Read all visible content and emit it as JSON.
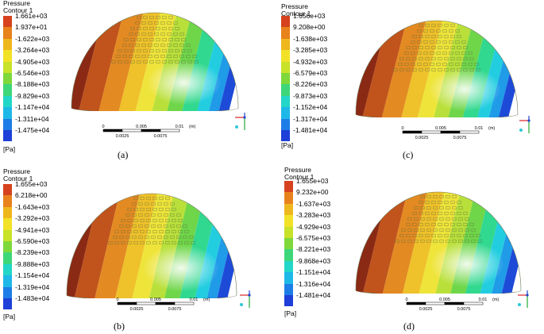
{
  "panels": [
    {
      "id": "a",
      "caption": "(a)",
      "legend": {
        "title": [
          "Pressure",
          "Contour 1"
        ],
        "values": [
          "1.661e+03",
          "1.937e+01",
          "-1.622e+03",
          "-3.264e+03",
          "-4.905e+03",
          "-6.546e+03",
          "-8.188e+03",
          "-9.829e+03",
          "-1.147e+04",
          "-1.311e+04",
          "-1.475e+04"
        ],
        "unit": "[Pa]"
      },
      "scale": {
        "top": [
          "0",
          "0.005",
          "0.01",
          "(m)"
        ],
        "bottom": [
          "0.0025",
          "0.0075"
        ]
      }
    },
    {
      "id": "b",
      "caption": "(b)",
      "legend": {
        "title": [
          "Pressure",
          "Contour 1"
        ],
        "values": [
          "1.655e+03",
          "6.218e+00",
          "-1.643e+03",
          "-3.292e+03",
          "-4.941e+03",
          "-6.590e+03",
          "-8.239e+03",
          "-9.888e+03",
          "-1.154e+04",
          "-1.319e+04",
          "-1.483e+04"
        ],
        "unit": "[Pa]"
      },
      "scale": {
        "top": [
          "0",
          "0.005",
          "0.01",
          "(m)"
        ],
        "bottom": [
          "0.0025",
          "0.0075"
        ]
      }
    },
    {
      "id": "c",
      "caption": "(c)",
      "legend": {
        "title": [
          "Pressure",
          "Contour 1"
        ],
        "values": [
          "1.656e+03",
          "9.208e+00",
          "-1.638e+03",
          "-3.285e+03",
          "-4.932e+03",
          "-6.579e+03",
          "-8.226e+03",
          "-9.873e+03",
          "-1.152e+04",
          "-1.317e+04",
          "-1.481e+04"
        ],
        "unit": "[Pa]"
      },
      "scale": {
        "top": [
          "0",
          "0.005",
          "0.01",
          "(m)"
        ],
        "bottom": [
          "0.0025",
          "0.0075"
        ]
      }
    },
    {
      "id": "d",
      "caption": "(d)",
      "legend": {
        "title": [
          "Pressure",
          "Contour 1"
        ],
        "values": [
          "1.655e+03",
          "9.232e+00",
          "-1.637e+03",
          "-3.283e+03",
          "-4.929e+03",
          "-6.575e+03",
          "-8.221e+03",
          "-9.868e+03",
          "-1.151e+04",
          "-1.316e+04",
          "-1.481e+04"
        ],
        "unit": "[Pa]"
      },
      "scale": {
        "top": [
          "0",
          "0.005",
          "0.01",
          "(m)"
        ],
        "bottom": [
          "0.0025",
          "0.0075"
        ]
      }
    }
  ],
  "colormap": [
    "#d6421e",
    "#e8821c",
    "#efb71e",
    "#f2e227",
    "#c8e22a",
    "#7fd83a",
    "#3dd77a",
    "#22d6c8",
    "#1eb8e8",
    "#1d7de6",
    "#1e3fd8"
  ]
}
